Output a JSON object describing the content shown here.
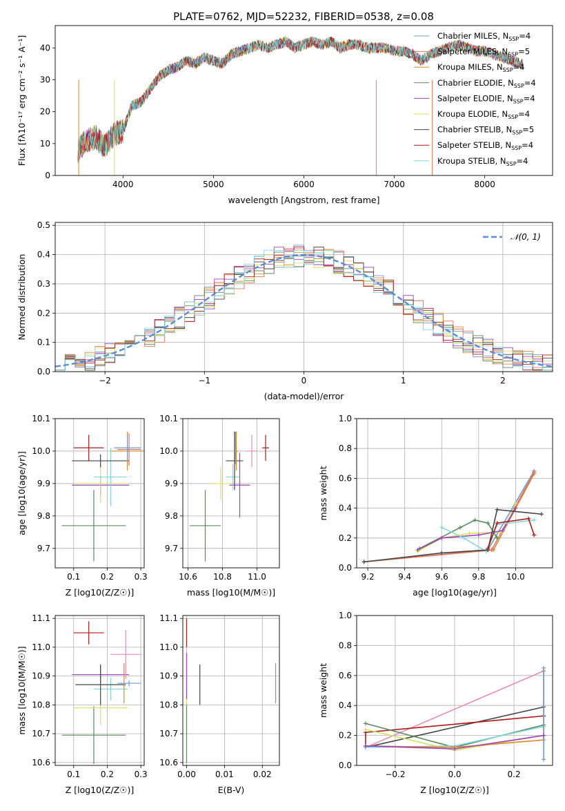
{
  "figure": {
    "title": "PLATE=0762, MJD=52232, FIBERID=0538, z=0.08"
  },
  "chart_data": [
    {
      "id": "spectrum",
      "type": "line",
      "title": "PLATE=0762, MJD=52232, FIBERID=0538, z=0.08",
      "xlabel": "wavelength [Angstrom, rest frame]",
      "ylabel": "Flux [fλ10⁻¹⁷ erg cm⁻² s⁻¹ A⁻¹]",
      "xlim": [
        3250,
        8750
      ],
      "ylim": [
        0,
        47
      ],
      "xticks": [
        4000,
        5000,
        6000,
        7000,
        8000
      ],
      "yticks": [
        0,
        10,
        20,
        30,
        40
      ],
      "grid": false,
      "legend": "upper right",
      "x": [
        3500,
        3600,
        3700,
        3800,
        3900,
        4000,
        4100,
        4200,
        4300,
        4400,
        4500,
        4600,
        4700,
        4800,
        4900,
        5000,
        5100,
        5200,
        5300,
        5400,
        5500,
        5600,
        5700,
        5800,
        5900,
        6000,
        6100,
        6200,
        6300,
        6400,
        6500,
        6600,
        6700,
        6800,
        6900,
        7000,
        7100,
        7200,
        7300,
        7400,
        7500,
        7600,
        7700,
        7800,
        7900,
        8000,
        8100,
        8200,
        8300,
        8400
      ],
      "series": [
        {
          "name": "Chabrier MILES, N_SSP=4",
          "color": "#6f9bd4"
        },
        {
          "name": "Salpeter MILES, N_SSP=5",
          "color": "#e8735a"
        },
        {
          "name": "Kroupa MILES, N_SSP=4",
          "color": "#e0872c"
        },
        {
          "name": "Chabrier ELODIE, N_SSP=4",
          "color": "#5a8a5a"
        },
        {
          "name": "Salpeter ELODIE, N_SSP=4",
          "color": "#a040c0"
        },
        {
          "name": "Kroupa ELODIE, N_SSP=4",
          "color": "#d8e060"
        },
        {
          "name": "Chabrier STELIB, N_SSP=5",
          "color": "#444444"
        },
        {
          "name": "Salpeter STELIB, N_SSP=4",
          "color": "#b01818"
        },
        {
          "name": "Kroupa STELIB, N_SSP=4",
          "color": "#7fd8e0"
        }
      ],
      "base_values": [
        8,
        11,
        12,
        9,
        13,
        14,
        22,
        23,
        27,
        31,
        33,
        34,
        36,
        35,
        37,
        36,
        35,
        38,
        39,
        40,
        41,
        40,
        41,
        42,
        40,
        41,
        42,
        41,
        42,
        40,
        41,
        41,
        40,
        40,
        40,
        39,
        39,
        38,
        36,
        38,
        39,
        40,
        41,
        40,
        39,
        39,
        38,
        37,
        36,
        35
      ]
    },
    {
      "id": "residuals",
      "type": "line",
      "xlabel": "(data-model)/error",
      "ylabel": "Normed distribution",
      "xlim": [
        -2.5,
        2.5
      ],
      "ylim": [
        0,
        0.51
      ],
      "xticks": [
        -2,
        -1,
        0,
        1,
        2
      ],
      "yticks": [
        0.0,
        0.1,
        0.2,
        0.3,
        0.4,
        0.5
      ],
      "grid": true,
      "legend": "upper right",
      "legend_label": "𝒩(0, 1)",
      "curve": {
        "type": "gaussian",
        "mu": 0,
        "sigma": 1
      },
      "bin_edges_start": -2.5,
      "bin_width": 0.1
    },
    {
      "id": "age-vs-Z",
      "type": "scatter",
      "xlabel": "Z [log10(Z/Z☉)]",
      "ylabel": "age  [log10(age/yr)]",
      "xlim": [
        0.045,
        0.31
      ],
      "ylim": [
        9.64,
        10.1
      ],
      "xticks": [
        0.1,
        0.2,
        0.3
      ],
      "yticks": [
        9.7,
        9.8,
        9.9,
        10.0,
        10.1
      ],
      "grid": true,
      "points": [
        {
          "x": 0.16,
          "y": 9.77,
          "xerr": 0.095,
          "yerr": 0.11,
          "color": "#5a8a5a"
        },
        {
          "x": 0.18,
          "y": 9.895,
          "xerr": 0.085,
          "yerr": 0.03,
          "color": "#a040c0"
        },
        {
          "x": 0.18,
          "y": 9.9,
          "xerr": 0.08,
          "yerr": 0.06,
          "color": "#d8e060"
        },
        {
          "x": 0.21,
          "y": 9.92,
          "xerr": 0.05,
          "yerr": 0.09,
          "color": "#7fd8e0"
        },
        {
          "x": 0.18,
          "y": 9.97,
          "xerr": 0.085,
          "yerr": 0.02,
          "color": "#444444"
        },
        {
          "x": 0.26,
          "y": 10.0,
          "xerr": 0.05,
          "yerr": 0.06,
          "color": "#e0872c"
        },
        {
          "x": 0.265,
          "y": 10.005,
          "xerr": 0.035,
          "yerr": 0.05,
          "color": "#e8735a"
        },
        {
          "x": 0.26,
          "y": 10.01,
          "xerr": 0.04,
          "yerr": 0.04,
          "color": "#6f9bd4"
        },
        {
          "x": 0.145,
          "y": 10.01,
          "xerr": 0.045,
          "yerr": 0.04,
          "color": "#b01818"
        }
      ]
    },
    {
      "id": "age-vs-mass",
      "type": "scatter",
      "xlabel": "mass [log10(M/M☉)]",
      "ylabel": "",
      "xlim": [
        10.57,
        11.13
      ],
      "ylim": [
        9.64,
        10.1
      ],
      "xticks": [
        10.6,
        10.8,
        11.0
      ],
      "yticks": [
        9.7,
        9.8,
        9.9,
        10.0,
        10.1
      ],
      "grid": true,
      "points": [
        {
          "x": 10.7,
          "y": 9.77,
          "xerr": 0.09,
          "yerr": 0.11,
          "color": "#5a8a5a"
        },
        {
          "x": 10.9,
          "y": 9.895,
          "xerr": 0.06,
          "yerr": 0.1,
          "color": "#a040c0"
        },
        {
          "x": 10.79,
          "y": 9.9,
          "xerr": 0.06,
          "yerr": 0.05,
          "color": "#d8e060"
        },
        {
          "x": 10.86,
          "y": 9.92,
          "xerr": 0.04,
          "yerr": 0.04,
          "color": "#7fd8e0"
        },
        {
          "x": 10.87,
          "y": 9.97,
          "xerr": 0.05,
          "yerr": 0.09,
          "color": "#444444"
        },
        {
          "x": 10.88,
          "y": 10.0,
          "xerr": 0.01,
          "yerr": 0.06,
          "color": "#e0872c"
        },
        {
          "x": 10.97,
          "y": 10.0,
          "xerr": 0.03,
          "yerr": 0.05,
          "color": "#e88ac0"
        },
        {
          "x": 10.875,
          "y": 10.01,
          "xerr": 0.01,
          "yerr": 0.05,
          "color": "#6f9bd4"
        },
        {
          "x": 11.05,
          "y": 10.01,
          "xerr": 0.02,
          "yerr": 0.04,
          "color": "#b01818"
        }
      ]
    },
    {
      "id": "mass-weight-vs-age",
      "type": "line",
      "xlabel": "age  [log10(age/yr)]",
      "ylabel": "mass weight",
      "xlim": [
        9.14,
        10.2
      ],
      "ylim": [
        0,
        1
      ],
      "xticks": [
        9.2,
        9.4,
        9.6,
        9.8,
        10.0
      ],
      "yticks": [
        0.0,
        0.2,
        0.4,
        0.6,
        0.8,
        1.0
      ],
      "grid": true,
      "series": [
        {
          "color": "#6f9bd4",
          "x": [
            9.18,
            9.85,
            10.1
          ],
          "y": [
            0.04,
            0.12,
            0.65
          ]
        },
        {
          "color": "#e0872c",
          "x": [
            9.18,
            9.88,
            10.1
          ],
          "y": [
            0.04,
            0.12,
            0.63
          ]
        },
        {
          "color": "#e8735a",
          "x": [
            9.18,
            9.87,
            10.1
          ],
          "y": [
            0.04,
            0.12,
            0.64
          ]
        },
        {
          "color": "#5a8a5a",
          "x": [
            9.48,
            9.7,
            9.78,
            9.85,
            9.9
          ],
          "y": [
            0.13,
            0.27,
            0.32,
            0.3,
            0.2
          ]
        },
        {
          "color": "#d8e060",
          "x": [
            9.47,
            9.6,
            9.75,
            9.93,
            10.0
          ],
          "y": [
            0.11,
            0.2,
            0.23,
            0.24,
            0.43
          ]
        },
        {
          "color": "#a040c0",
          "x": [
            9.47,
            9.6,
            9.8,
            9.93,
            10.0
          ],
          "y": [
            0.12,
            0.2,
            0.22,
            0.25,
            0.4
          ]
        },
        {
          "color": "#7fd8e0",
          "x": [
            9.6,
            9.72,
            9.84,
            9.9,
            10.1
          ],
          "y": [
            0.27,
            0.2,
            0.11,
            0.29,
            0.32
          ]
        },
        {
          "color": "#444444",
          "x": [
            9.18,
            9.6,
            9.85,
            9.9,
            10.14
          ],
          "y": [
            0.04,
            0.1,
            0.12,
            0.39,
            0.36
          ]
        },
        {
          "color": "#b01818",
          "x": [
            9.85,
            9.9,
            10.07,
            10.1
          ],
          "y": [
            0.13,
            0.3,
            0.33,
            0.22
          ]
        }
      ]
    },
    {
      "id": "mass-vs-Z",
      "type": "scatter",
      "xlabel": "Z [log10(Z/Z☉)]",
      "ylabel": "mass [log10(M/M☉)]",
      "xlim": [
        0.045,
        0.31
      ],
      "ylim": [
        10.59,
        11.11
      ],
      "xticks": [
        0.1,
        0.2,
        0.3
      ],
      "yticks": [
        10.6,
        10.7,
        10.8,
        10.9,
        11.0,
        11.1
      ],
      "grid": true,
      "points": [
        {
          "x": 0.16,
          "y": 10.695,
          "xerr": 0.095,
          "yerr": 0.1,
          "color": "#5a8a5a"
        },
        {
          "x": 0.18,
          "y": 10.79,
          "xerr": 0.08,
          "yerr": 0.06,
          "color": "#d8e060"
        },
        {
          "x": 0.18,
          "y": 10.905,
          "xerr": 0.085,
          "yerr": 0.03,
          "color": "#a040c0"
        },
        {
          "x": 0.21,
          "y": 10.855,
          "xerr": 0.05,
          "yerr": 0.04,
          "color": "#7fd8e0"
        },
        {
          "x": 0.18,
          "y": 10.87,
          "xerr": 0.075,
          "yerr": 0.07,
          "color": "#444444"
        },
        {
          "x": 0.25,
          "y": 10.875,
          "xerr": 0.01,
          "yerr": 0.07,
          "color": "#e0872c"
        },
        {
          "x": 0.265,
          "y": 10.875,
          "xerr": 0.035,
          "yerr": 0.01,
          "color": "#6f9bd4"
        },
        {
          "x": 0.255,
          "y": 10.975,
          "xerr": 0.045,
          "yerr": 0.085,
          "color": "#e88ac0"
        },
        {
          "x": 0.145,
          "y": 11.05,
          "xerr": 0.045,
          "yerr": 0.04,
          "color": "#b01818"
        }
      ]
    },
    {
      "id": "mass-vs-ebv",
      "type": "scatter",
      "xlabel": "E(B-V)",
      "ylabel": "",
      "xlim": [
        -0.001,
        0.0245
      ],
      "ylim": [
        10.59,
        11.11
      ],
      "xticks": [
        0.0,
        0.01,
        0.02
      ],
      "yticks": [
        10.6,
        10.7,
        10.8,
        10.9,
        11.0,
        11.1
      ],
      "grid": true,
      "points": [
        {
          "x": 0.0,
          "y": 10.79,
          "xerr": 0.0,
          "yerr": 0.07,
          "color": "#d8e060"
        },
        {
          "x": 0.0,
          "y": 10.9,
          "xerr": 0.0,
          "yerr": 0.08,
          "color": "#a040c0"
        },
        {
          "x": 0.0,
          "y": 11.05,
          "xerr": 0.0,
          "yerr": 0.05,
          "color": "#b01818"
        },
        {
          "x": 0.0,
          "y": 10.7,
          "xerr": 0.0,
          "yerr": 0.1,
          "color": "#5a8a5a"
        },
        {
          "x": 0.0035,
          "y": 10.87,
          "xerr": 0.0,
          "yerr": 0.07,
          "color": "#444444"
        },
        {
          "x": 0.0235,
          "y": 10.875,
          "xerr": 0.0,
          "yerr": 0.07,
          "color": "#6f9bd4"
        },
        {
          "x": 0.0235,
          "y": 10.85,
          "xerr": 0.0,
          "yerr": 0.04,
          "color": "#e0872c"
        }
      ]
    },
    {
      "id": "mass-weight-vs-Z",
      "type": "line",
      "xlabel": "Z [log10(Z/Z☉)]",
      "ylabel": "mass weight",
      "xlim": [
        -0.33,
        0.33
      ],
      "ylim": [
        0,
        1
      ],
      "xticks": [
        -0.2,
        0.0,
        0.2
      ],
      "yticks": [
        0.0,
        0.2,
        0.4,
        0.6,
        0.8,
        1.0
      ],
      "grid": true,
      "series": [
        {
          "color": "#e88ac0",
          "x": [
            -0.3,
            0.3
          ],
          "y": [
            0.12,
            0.63
          ]
        },
        {
          "color": "#444444",
          "x": [
            -0.3,
            0.3
          ],
          "y": [
            0.12,
            0.39
          ]
        },
        {
          "color": "#b01818",
          "x": [
            -0.3,
            -0.3,
            0.3
          ],
          "y": [
            0.12,
            0.22,
            0.33
          ]
        },
        {
          "color": "#5a8a5a",
          "x": [
            -0.3,
            0.0,
            0.3
          ],
          "y": [
            0.28,
            0.12,
            0.27
          ]
        },
        {
          "color": "#7fd8e0",
          "x": [
            -0.3,
            0.0,
            0.3
          ],
          "y": [
            0.12,
            0.13,
            0.26
          ]
        },
        {
          "color": "#d8e060",
          "x": [
            -0.3,
            0.0,
            0.3
          ],
          "y": [
            0.24,
            0.1,
            0.2
          ]
        },
        {
          "color": "#e0872c",
          "x": [
            -0.3,
            0.0,
            0.3,
            0.3
          ],
          "y": [
            0.13,
            0.12,
            0.17,
            0.63
          ]
        },
        {
          "color": "#6f9bd4",
          "x": [
            0.3,
            0.3
          ],
          "y": [
            0.04,
            0.65
          ]
        },
        {
          "color": "#a040c0",
          "x": [
            -0.3,
            0.0,
            0.3
          ],
          "y": [
            0.13,
            0.11,
            0.2
          ]
        }
      ]
    }
  ]
}
